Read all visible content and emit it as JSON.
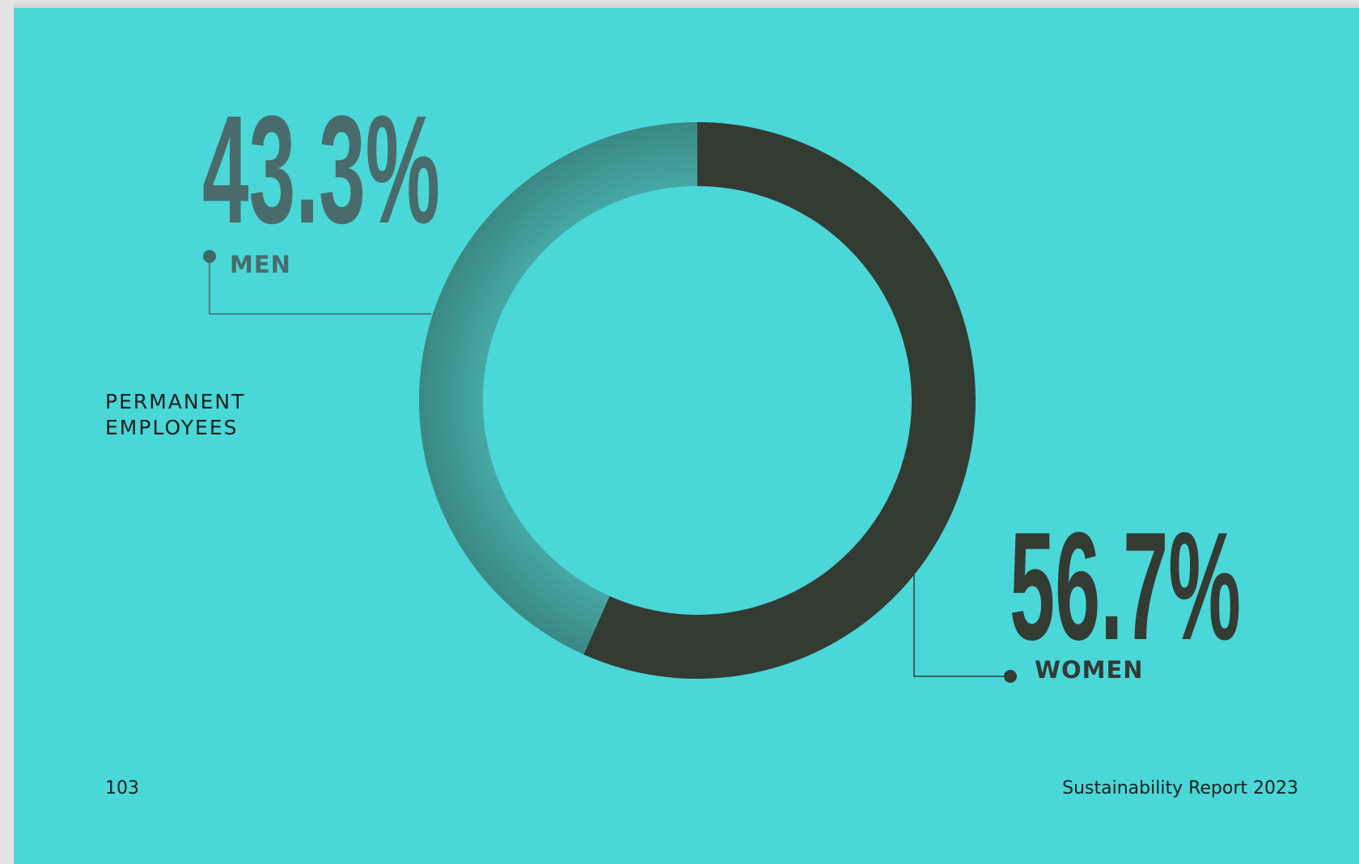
{
  "chart_data": {
    "type": "pie",
    "title": "PERMANENT EMPLOYEES",
    "categories": [
      "MEN",
      "WOMEN"
    ],
    "values": [
      43.3,
      56.7
    ],
    "value_labels": [
      "43.3%",
      "56.7%"
    ],
    "colors": [
      "#3e8f8b",
      "#333b33"
    ]
  },
  "side_title": {
    "line1": "PERMANENT",
    "line2": "EMPLOYEES"
  },
  "footer": {
    "page_number": "103",
    "report_name": "Sustainability Report 2023"
  },
  "colors": {
    "background": "#4ad7d8",
    "men": "#3e8f8b",
    "men_label": "#4a6b6b",
    "women": "#333b33"
  }
}
